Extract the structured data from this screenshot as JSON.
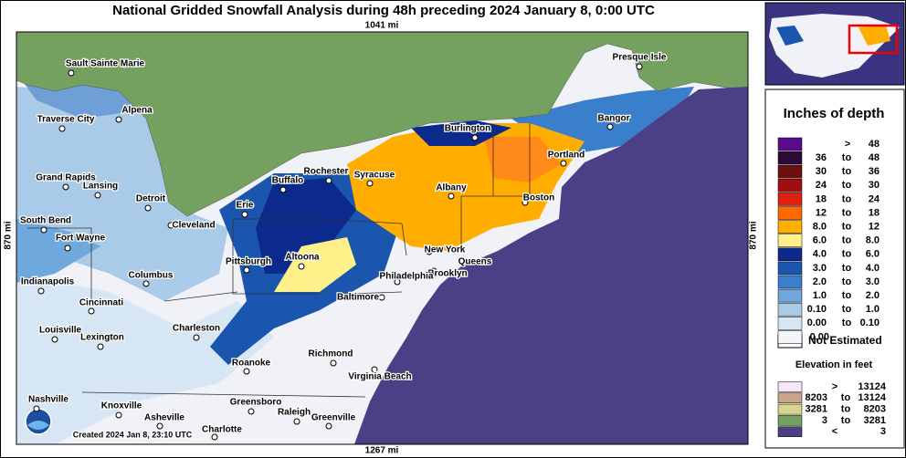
{
  "title": "National Gridded Snowfall Analysis during 48h preceding 2024 January 8, 0:00 UTC",
  "scale_labels": {
    "top": "1041 mi",
    "bottom": "1267 mi",
    "left": "870 mi",
    "right": "870 mi"
  },
  "cities": [
    "Sault Sainte Marie",
    "Alpena",
    "Traverse City",
    "Grand Rapids",
    "Lansing",
    "Detroit",
    "South Bend",
    "Fort Wayne",
    "Cleveland",
    "Erie",
    "Buffalo",
    "Rochester",
    "Syracuse",
    "Burlington",
    "Portland",
    "Bangor",
    "Presque Isle",
    "Albany",
    "Boston",
    "New York",
    "Queens",
    "Brooklyn",
    "Philadelphia",
    "Altoona",
    "Pittsburgh",
    "Columbus",
    "Indianapolis",
    "Cincinnati",
    "Baltimore",
    "Charleston",
    "Louisville",
    "Lexington",
    "Richmond",
    "Roanoke",
    "Virginia Beach",
    "Nashville",
    "Knoxville",
    "Asheville",
    "Greensboro",
    "Raleigh",
    "Greenville",
    "Charlotte"
  ],
  "credit": "Created 2024 Jan 8, 23:10 UTC",
  "legend": {
    "title": "Inches of depth",
    "rows": [
      {
        "text": [
          ">",
          "48"
        ],
        "color": "#5a0a8c"
      },
      {
        "text": [
          "36",
          "to",
          "48"
        ],
        "color": "#2c0a36"
      },
      {
        "text": [
          "30",
          "to",
          "36"
        ],
        "color": "#6e0f0f"
      },
      {
        "text": [
          "24",
          "to",
          "30"
        ],
        "color": "#a00f0f"
      },
      {
        "text": [
          "18",
          "to",
          "24"
        ],
        "color": "#e0200e"
      },
      {
        "text": [
          "12",
          "to",
          "18"
        ],
        "color": "#ff6a00"
      },
      {
        "text": [
          "8.0",
          "to",
          "12"
        ],
        "color": "#ffae00"
      },
      {
        "text": [
          "6.0",
          "to",
          "8.0"
        ],
        "color": "#fff08a"
      },
      {
        "text": [
          "4.0",
          "to",
          "6.0"
        ],
        "color": "#0c2a8c"
      },
      {
        "text": [
          "3.0",
          "to",
          "4.0"
        ],
        "color": "#1a55ae"
      },
      {
        "text": [
          "2.0",
          "to",
          "3.0"
        ],
        "color": "#3a7fcc"
      },
      {
        "text": [
          "1.0",
          "to",
          "2.0"
        ],
        "color": "#6ea8dc"
      },
      {
        "text": [
          "0.10",
          "to",
          "1.0"
        ],
        "color": "#a9cbe8"
      },
      {
        "text": [
          "0.00",
          "to",
          "0.10"
        ],
        "color": "#d6e6f4"
      },
      {
        "text": [
          "0.00"
        ],
        "color": "#f4f4fb"
      }
    ],
    "not_estimated": "Not Estimated",
    "elevation_title": "Elevation in feet",
    "elevation_rows": [
      {
        "text": [
          ">",
          "13124"
        ],
        "color": "#f6e6f6"
      },
      {
        "text": [
          "8203",
          "to",
          "13124"
        ],
        "color": "#c9a58a"
      },
      {
        "text": [
          "3281",
          "to",
          "8203"
        ],
        "color": "#d9d68c"
      },
      {
        "text": [
          "3",
          "to",
          "3281"
        ],
        "color": "#74a060"
      },
      {
        "text": [
          "<",
          "3"
        ],
        "color": "#4b3f86"
      }
    ]
  }
}
